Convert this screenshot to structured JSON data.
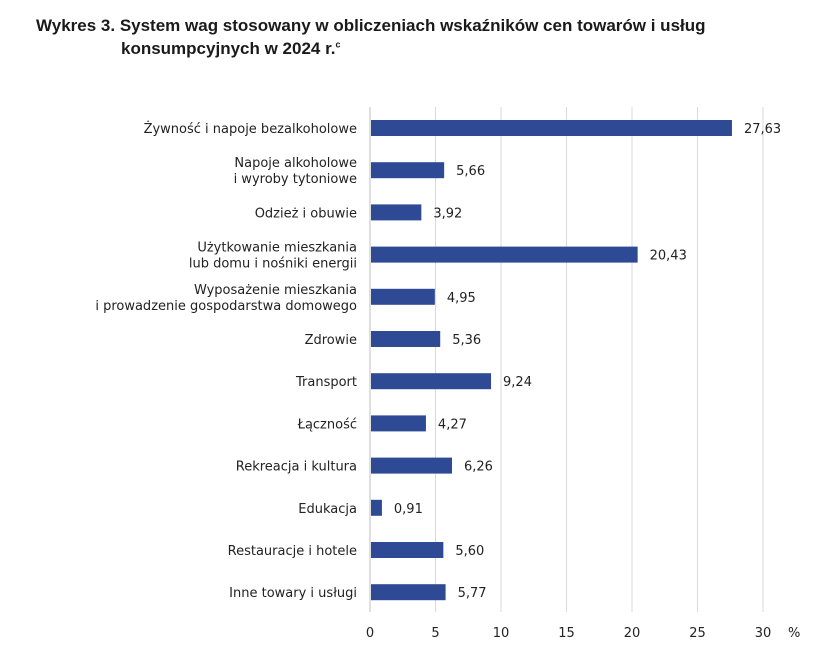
{
  "chart_data": {
    "type": "bar",
    "orientation": "horizontal",
    "title_prefix": "Wykres 3.",
    "title_line1": "System wag stosowany w obliczeniach wskaźników cen towarów i usług",
    "title_line2": "konsumpcyjnych w 2024 r.",
    "title_footnote": "c",
    "unit": "%",
    "categories": [
      [
        "Żywność i napoje bezalkoholowe"
      ],
      [
        "Napoje alkoholowe",
        "i wyroby tytoniowe"
      ],
      [
        "Odzież i obuwie"
      ],
      [
        "Użytkowanie mieszkania",
        "lub domu i nośniki energii"
      ],
      [
        "Wyposażenie mieszkania",
        "i prowadzenie gospodarstwa domowego"
      ],
      [
        "Zdrowie"
      ],
      [
        "Transport"
      ],
      [
        "Łączność"
      ],
      [
        "Rekreacja i kultura"
      ],
      [
        "Edukacja"
      ],
      [
        "Restauracje i hotele"
      ],
      [
        "Inne towary i usługi"
      ]
    ],
    "values": [
      27.63,
      5.66,
      3.92,
      20.43,
      4.95,
      5.36,
      9.24,
      4.27,
      6.26,
      0.91,
      5.6,
      5.77
    ],
    "value_labels": [
      "27,63",
      "5,66",
      "3,92",
      "20,43",
      "4,95",
      "5,36",
      "9,24",
      "4,27",
      "6,26",
      "0,91",
      "5,60",
      "5,77"
    ],
    "xlim": [
      0,
      30
    ],
    "xticks": [
      0,
      5,
      10,
      15,
      20,
      25,
      30
    ],
    "grid": "vertical",
    "bar_color": "#2e4a94",
    "grid_color": "#d9d9d9"
  }
}
